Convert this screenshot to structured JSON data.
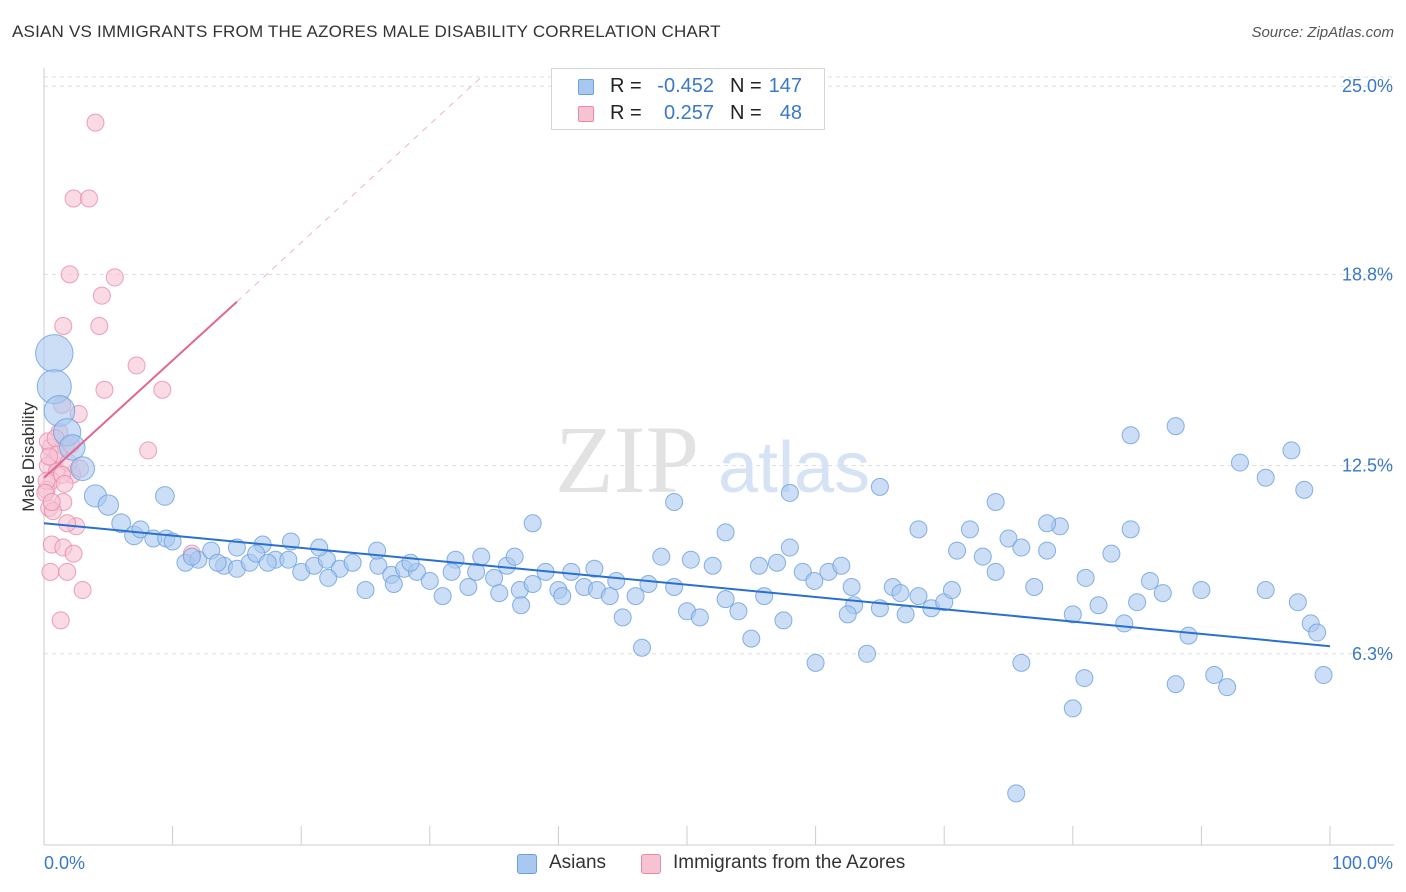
{
  "title": "ASIAN VS IMMIGRANTS FROM THE AZORES MALE DISABILITY CORRELATION CHART",
  "source": "Source: ZipAtlas.com",
  "watermark": {
    "zip": "ZIP",
    "atlas": "atlas"
  },
  "colors": {
    "asians_fill": "#a9c8f0",
    "asians_stroke": "#6a9fe0",
    "asians_line": "#2a70d0",
    "azores_fill": "#f7c3d3",
    "azores_stroke": "#e88aa7",
    "azores_line": "#e06890",
    "tick_text": "#3a78c9",
    "grid": "#dddddd"
  },
  "legend": {
    "rows": [
      {
        "r_label": "R =",
        "r_value": "-0.452",
        "n_label": "N =",
        "n_value": "147"
      },
      {
        "r_label": "R =",
        "r_value": "0.257",
        "n_label": "N =",
        "n_value": "48"
      }
    ]
  },
  "bottom_legend": {
    "items": [
      {
        "label": "Asians"
      },
      {
        "label": "Immigrants from the Azores"
      }
    ]
  },
  "chart_data": {
    "type": "scatter",
    "title": "ASIAN VS IMMIGRANTS FROM THE AZORES MALE DISABILITY CORRELATION CHART",
    "xlabel": "",
    "ylabel": "Male Disability",
    "xlim": [
      0,
      100
    ],
    "ylim": [
      0,
      25.6
    ],
    "x_tick_labels": [
      "0.0%",
      "100.0%"
    ],
    "y_ticks": [
      {
        "value": 25.0,
        "label": "25.0%"
      },
      {
        "value": 18.8,
        "label": "18.8%"
      },
      {
        "value": 12.5,
        "label": "12.5%"
      },
      {
        "value": 6.3,
        "label": "6.3%"
      }
    ],
    "grid": "horizontal dashed",
    "legend_position": "top-center",
    "series": [
      {
        "name": "Asians",
        "trend": {
          "x0": 0,
          "y0": 10.6,
          "x1": 100,
          "y1": 6.55
        },
        "points": [
          [
            0.8,
            16.2,
            2.2
          ],
          [
            0.8,
            15.1,
            2.0
          ],
          [
            1.2,
            14.3,
            1.8
          ],
          [
            1.8,
            13.6,
            1.6
          ],
          [
            2.2,
            13.1,
            1.5
          ],
          [
            3.0,
            12.4,
            1.4
          ],
          [
            4.0,
            11.5,
            1.3
          ],
          [
            5.0,
            11.2,
            1.2
          ],
          [
            6.0,
            10.6,
            1.1
          ],
          [
            7.0,
            10.2,
            1.1
          ],
          [
            7.5,
            10.4,
            1.0
          ],
          [
            8.5,
            10.1,
            1.0
          ],
          [
            9.5,
            10.1,
            1.0
          ],
          [
            10.0,
            10.0,
            1.0
          ],
          [
            11.0,
            9.3,
            1.0
          ],
          [
            12.0,
            9.4,
            1.0
          ],
          [
            13.0,
            9.7,
            1.0
          ],
          [
            14.0,
            9.2,
            1.0
          ],
          [
            15.0,
            9.1,
            1.0
          ],
          [
            16.0,
            9.3,
            1.0
          ],
          [
            17.0,
            9.9,
            1.0
          ],
          [
            18.0,
            9.4,
            1.0
          ],
          [
            19.0,
            9.4,
            1.0
          ],
          [
            20.0,
            9.0,
            1.0
          ],
          [
            21.0,
            9.2,
            1.0
          ],
          [
            22.0,
            9.4,
            1.0
          ],
          [
            23.0,
            9.1,
            1.0
          ],
          [
            24.0,
            9.3,
            1.0
          ],
          [
            25.0,
            8.4,
            1.0
          ],
          [
            26.0,
            9.2,
            1.0
          ],
          [
            27.0,
            8.9,
            1.0
          ],
          [
            28.0,
            9.1,
            1.0
          ],
          [
            29.0,
            9.0,
            1.0
          ],
          [
            30.0,
            8.7,
            1.0
          ],
          [
            31.0,
            8.2,
            1.0
          ],
          [
            32.0,
            9.4,
            1.0
          ],
          [
            33.0,
            8.5,
            1.0
          ],
          [
            34.0,
            9.5,
            1.0
          ],
          [
            35.0,
            8.8,
            1.0
          ],
          [
            36.0,
            9.2,
            1.0
          ],
          [
            37.0,
            8.4,
            1.0
          ],
          [
            38.0,
            8.6,
            1.0
          ],
          [
            39.0,
            9.0,
            1.0
          ],
          [
            40.0,
            8.4,
            1.0
          ],
          [
            41.0,
            9.0,
            1.0
          ],
          [
            42.0,
            8.5,
            1.0
          ],
          [
            43.0,
            8.4,
            1.0
          ],
          [
            44.0,
            8.2,
            1.0
          ],
          [
            45.0,
            7.5,
            1.0
          ],
          [
            46.0,
            8.2,
            1.0
          ],
          [
            47.0,
            8.6,
            1.0
          ],
          [
            48.0,
            9.5,
            1.0
          ],
          [
            49.0,
            8.5,
            1.0
          ],
          [
            50.0,
            7.7,
            1.0
          ],
          [
            51.0,
            7.5,
            1.0
          ],
          [
            52.0,
            9.2,
            1.0
          ],
          [
            53.0,
            8.1,
            1.0
          ],
          [
            54.0,
            7.7,
            1.0
          ],
          [
            55.0,
            6.8,
            1.0
          ],
          [
            56.0,
            8.2,
            1.0
          ],
          [
            57.0,
            9.3,
            1.0
          ],
          [
            58.0,
            9.8,
            1.0
          ],
          [
            59.0,
            9.0,
            1.0
          ],
          [
            60.0,
            6.0,
            1.0
          ],
          [
            61.0,
            9.0,
            1.0
          ],
          [
            62.0,
            9.2,
            1.0
          ],
          [
            63.0,
            7.9,
            1.0
          ],
          [
            64.0,
            6.3,
            1.0
          ],
          [
            65.0,
            7.8,
            1.0
          ],
          [
            66.0,
            8.5,
            1.0
          ],
          [
            67.0,
            7.6,
            1.0
          ],
          [
            68.0,
            8.2,
            1.0
          ],
          [
            69.0,
            7.8,
            1.0
          ],
          [
            70.0,
            8.0,
            1.0
          ],
          [
            71.0,
            9.7,
            1.0
          ],
          [
            72.0,
            10.4,
            1.0
          ],
          [
            73.0,
            9.5,
            1.0
          ],
          [
            74.0,
            9.0,
            1.0
          ],
          [
            75.0,
            10.1,
            1.0
          ],
          [
            76.0,
            9.8,
            1.0
          ],
          [
            77.0,
            8.5,
            1.0
          ],
          [
            78.0,
            9.7,
            1.0
          ],
          [
            79.0,
            10.5,
            1.0
          ],
          [
            80.0,
            7.6,
            1.0
          ],
          [
            81.0,
            8.8,
            1.0
          ],
          [
            82.0,
            7.9,
            1.0
          ],
          [
            83.0,
            9.6,
            1.0
          ],
          [
            84.0,
            7.3,
            1.0
          ],
          [
            85.0,
            8.0,
            1.0
          ],
          [
            86.0,
            8.7,
            1.0
          ],
          [
            87.0,
            8.3,
            1.0
          ],
          [
            88.0,
            5.3,
            1.0
          ],
          [
            89.0,
            6.9,
            1.0
          ],
          [
            90.0,
            8.4,
            1.0
          ],
          [
            91.0,
            5.6,
            1.0
          ],
          [
            92.0,
            5.2,
            1.0
          ],
          [
            38.0,
            10.6,
            1.0
          ],
          [
            49.0,
            11.3,
            1.0
          ],
          [
            53.0,
            10.3,
            1.0
          ],
          [
            58.0,
            11.6,
            1.0
          ],
          [
            65.0,
            11.8,
            1.0
          ],
          [
            68.0,
            10.4,
            1.0
          ],
          [
            74.0,
            11.3,
            1.0
          ],
          [
            78.0,
            10.6,
            1.0
          ],
          [
            84.5,
            13.5,
            1.0
          ],
          [
            88.0,
            13.8,
            1.0
          ],
          [
            93.0,
            12.6,
            1.0
          ],
          [
            95.0,
            12.1,
            1.0
          ],
          [
            97.0,
            13.0,
            1.0
          ],
          [
            98.0,
            11.7,
            1.0
          ],
          [
            76.0,
            6.0,
            1.0
          ],
          [
            80.0,
            4.5,
            1.0
          ],
          [
            95.0,
            8.4,
            1.0
          ],
          [
            97.5,
            8.0,
            1.0
          ],
          [
            98.5,
            7.3,
            1.0
          ],
          [
            99.0,
            7.0,
            1.0
          ],
          [
            99.5,
            5.6,
            1.0
          ],
          [
            75.6,
            1.7,
            1.0
          ],
          [
            84.5,
            10.4,
            1.0
          ],
          [
            80.9,
            5.5,
            1.0
          ],
          [
            62.5,
            7.6,
            1.0
          ],
          [
            57.5,
            7.4,
            1.0
          ],
          [
            46.5,
            6.5,
            1.0
          ],
          [
            40.3,
            8.2,
            1.0
          ],
          [
            36.6,
            9.5,
            1.0
          ],
          [
            31.7,
            9.0,
            1.0
          ],
          [
            27.2,
            8.6,
            1.0
          ],
          [
            22.1,
            8.8,
            1.0
          ],
          [
            19.2,
            10.0,
            1.0
          ],
          [
            16.5,
            9.6,
            1.0
          ],
          [
            13.5,
            9.3,
            1.0
          ],
          [
            11.5,
            9.5,
            1.0
          ],
          [
            9.4,
            11.5,
            1.1
          ],
          [
            15.0,
            9.8,
            1.0
          ],
          [
            17.4,
            9.3,
            1.0
          ],
          [
            21.4,
            9.8,
            1.0
          ],
          [
            25.9,
            9.7,
            1.0
          ],
          [
            28.5,
            9.3,
            1.0
          ],
          [
            33.6,
            9.0,
            1.0
          ],
          [
            35.4,
            8.3,
            1.0
          ],
          [
            37.1,
            7.9,
            1.0
          ],
          [
            42.8,
            9.1,
            1.0
          ],
          [
            44.5,
            8.7,
            1.0
          ],
          [
            50.3,
            9.4,
            1.0
          ],
          [
            55.6,
            9.2,
            1.0
          ],
          [
            59.9,
            8.7,
            1.0
          ],
          [
            62.8,
            8.5,
            1.0
          ],
          [
            66.6,
            8.3,
            1.0
          ],
          [
            70.6,
            8.4,
            1.0
          ]
        ]
      },
      {
        "name": "Immigrants from the Azores",
        "trend": {
          "x0": 0,
          "y0": 12.1,
          "x1": 15.0,
          "y1": 17.9,
          "dashed_to_x": 34.0,
          "dashed_to_y": 25.3
        },
        "points": [
          [
            4.0,
            23.8,
            1.0
          ],
          [
            2.3,
            21.3,
            1.0
          ],
          [
            3.5,
            21.3,
            1.0
          ],
          [
            2.0,
            18.8,
            1.0
          ],
          [
            5.5,
            18.7,
            1.0
          ],
          [
            4.5,
            18.1,
            1.0
          ],
          [
            1.5,
            17.1,
            1.0
          ],
          [
            4.3,
            17.1,
            1.0
          ],
          [
            7.2,
            15.8,
            1.0
          ],
          [
            4.7,
            15.0,
            1.0
          ],
          [
            9.2,
            15.0,
            1.0
          ],
          [
            1.4,
            14.5,
            1.0
          ],
          [
            2.7,
            14.2,
            1.0
          ],
          [
            1.2,
            13.6,
            1.0
          ],
          [
            0.5,
            13.1,
            1.0
          ],
          [
            1.7,
            13.1,
            1.0
          ],
          [
            8.1,
            13.0,
            1.0
          ],
          [
            0.8,
            12.7,
            1.0
          ],
          [
            0.3,
            12.5,
            1.0
          ],
          [
            1.0,
            12.3,
            1.0
          ],
          [
            2.2,
            12.2,
            1.0
          ],
          [
            0.6,
            12.0,
            1.0
          ],
          [
            0.2,
            11.7,
            1.0
          ],
          [
            1.5,
            11.3,
            1.0
          ],
          [
            0.4,
            11.1,
            1.0
          ],
          [
            2.5,
            10.5,
            1.0
          ],
          [
            1.8,
            10.6,
            1.0
          ],
          [
            0.6,
            9.9,
            1.0
          ],
          [
            1.5,
            9.8,
            1.0
          ],
          [
            2.3,
            9.6,
            1.0
          ],
          [
            0.5,
            9.0,
            1.0
          ],
          [
            1.8,
            9.0,
            1.0
          ],
          [
            3.0,
            8.4,
            1.0
          ],
          [
            1.3,
            7.4,
            1.0
          ],
          [
            0.3,
            13.3,
            1.0
          ],
          [
            1.1,
            12.9,
            1.0
          ],
          [
            0.2,
            12.0,
            1.0
          ],
          [
            0.7,
            11.0,
            1.0
          ],
          [
            1.9,
            12.6,
            1.0
          ],
          [
            2.8,
            12.4,
            1.0
          ],
          [
            0.9,
            13.4,
            1.0
          ],
          [
            1.4,
            12.2,
            1.0
          ],
          [
            0.4,
            12.8,
            1.0
          ],
          [
            1.6,
            11.9,
            1.0
          ],
          [
            0.1,
            11.6,
            1.0
          ],
          [
            2.1,
            13.2,
            1.0
          ],
          [
            0.6,
            11.3,
            1.0
          ],
          [
            11.5,
            9.6,
            1.0
          ]
        ]
      }
    ]
  }
}
